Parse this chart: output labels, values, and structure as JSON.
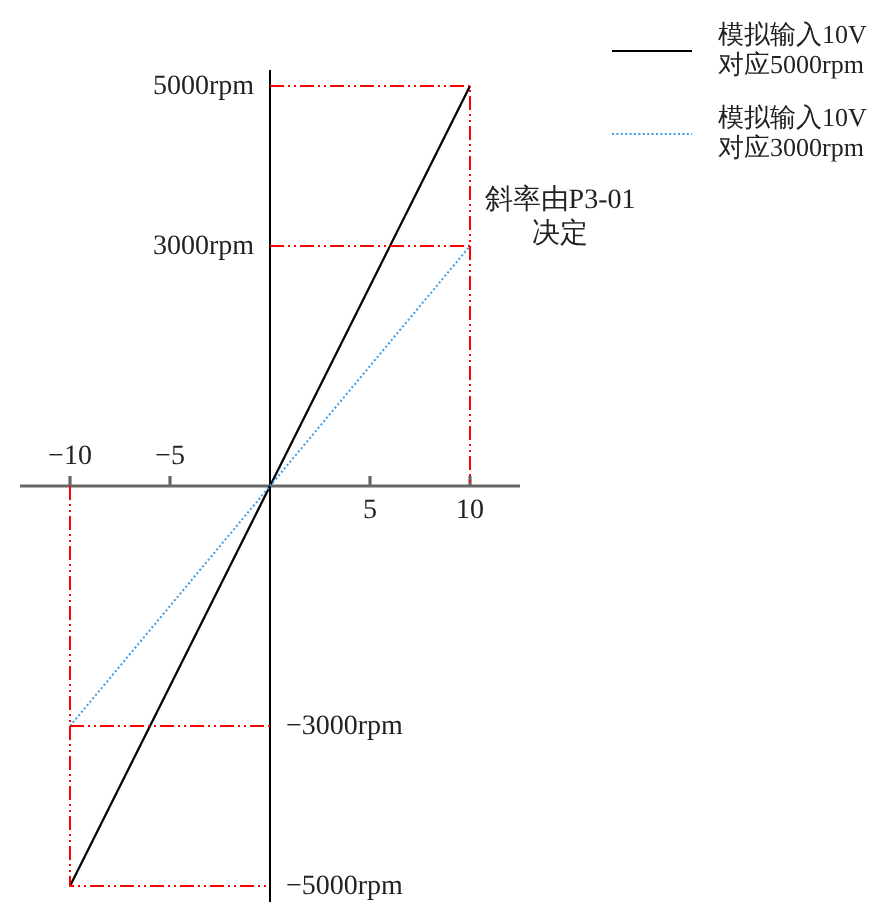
{
  "chart_data": {
    "type": "line",
    "xlim": [
      -12.5,
      12.5
    ],
    "ylim": [
      -5200,
      5200
    ],
    "x2lim": [
      -12.5,
      12.5
    ],
    "y2lim": [
      -5200,
      5200
    ],
    "xticks": [
      5,
      10
    ],
    "x2ticks": [
      {
        "value": -10,
        "label": "−10"
      },
      {
        "value": -5,
        "label": "−5"
      }
    ],
    "yticks": [
      {
        "value": 3000,
        "label": "3000rpm"
      },
      {
        "value": 5000,
        "label": "5000rpm"
      }
    ],
    "y2ticks": [
      {
        "value": -5000,
        "label": "−5000rpm"
      },
      {
        "value": -3000,
        "label": "−3000rpm"
      }
    ],
    "grid": false,
    "legend": "top right",
    "marker": "none",
    "series": [
      {
        "name": "模拟输入10V\n对应5000rpm",
        "color": "#000000",
        "line_style": "solid",
        "x": [
          -10,
          10
        ],
        "values": [
          -5000,
          5000
        ]
      },
      {
        "name": "模拟输入10V\n对应3000rpm",
        "color": "#3c9be6",
        "line_style": "dotted",
        "x": [
          -10,
          10
        ],
        "values": [
          -3000,
          3000
        ]
      },
      {
        "color": "#ff0000",
        "line_style": "dashed",
        "x": [
          0,
          10,
          10
        ],
        "values": [
          5000,
          5000,
          0
        ]
      },
      {
        "color": "#ff0000",
        "line_style": "dashed",
        "x": [
          0,
          10
        ],
        "values": [
          3000,
          3000
        ]
      },
      {
        "color": "#ff0000",
        "line_style": "dashed",
        "axis": "y2",
        "x": [
          -10,
          -10,
          0
        ],
        "values": [
          0,
          -5000,
          -5000
        ]
      },
      {
        "color": "#ff0000",
        "line_style": "dashed",
        "axis": "y2",
        "x": [
          -10,
          0
        ],
        "values": [
          -3000,
          -3000
        ]
      }
    ],
    "annotations": [
      "斜率由P3-01\n决定"
    ]
  }
}
